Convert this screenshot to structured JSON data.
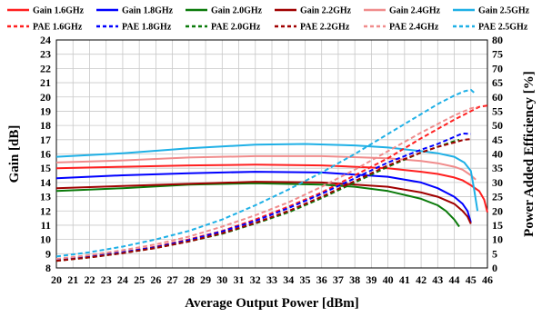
{
  "chart_data": {
    "type": "line",
    "xlabel": "Average Output Power [dBm]",
    "ylabel": "Gain [dB]",
    "y2label": "Power Added Efficiency [%]",
    "xlim": [
      20,
      46
    ],
    "ylim": [
      8,
      24
    ],
    "y2lim": [
      0,
      80
    ],
    "xticks": [
      "20",
      "21",
      "22",
      "23",
      "24",
      "25",
      "26",
      "27",
      "28",
      "29",
      "30",
      "31",
      "32",
      "33",
      "34",
      "35",
      "36",
      "37",
      "38",
      "39",
      "40",
      "41",
      "42",
      "43",
      "44",
      "45",
      "46"
    ],
    "yticks": [
      "8",
      "9",
      "10",
      "11",
      "12",
      "13",
      "14",
      "15",
      "16",
      "17",
      "18",
      "19",
      "20",
      "21",
      "22",
      "23",
      "24"
    ],
    "y2ticks": [
      "0",
      "5",
      "10",
      "15",
      "20",
      "25",
      "30",
      "35",
      "40",
      "45",
      "50",
      "55",
      "60",
      "65",
      "70",
      "75",
      "80"
    ],
    "grid": true,
    "legend_position": "top",
    "series": [
      {
        "name": "Gain 1.6GHz",
        "axis": "left",
        "style": "solid",
        "color": "#ff1f1f",
        "x": [
          20,
          24,
          28,
          32,
          36,
          40,
          42,
          43,
          44,
          44.5,
          45,
          45.5,
          45.8,
          46
        ],
        "y": [
          15.0,
          15.1,
          15.2,
          15.25,
          15.2,
          15.0,
          14.75,
          14.6,
          14.35,
          14.15,
          13.8,
          13.4,
          12.8,
          11.9
        ]
      },
      {
        "name": "Gain 1.8GHz",
        "axis": "left",
        "style": "solid",
        "color": "#0000ff",
        "x": [
          20,
          24,
          28,
          32,
          36,
          40,
          42,
          43,
          44,
          44.5,
          44.8,
          45.0
        ],
        "y": [
          14.3,
          14.5,
          14.65,
          14.75,
          14.7,
          14.4,
          14.0,
          13.6,
          13.0,
          12.5,
          12.0,
          11.2
        ]
      },
      {
        "name": "Gain 2.0GHz",
        "axis": "left",
        "style": "solid",
        "color": "#0a7a0a",
        "x": [
          20,
          24,
          28,
          32,
          36,
          38,
          40,
          42,
          43,
          43.5,
          44,
          44.3
        ],
        "y": [
          13.4,
          13.6,
          13.85,
          13.95,
          13.85,
          13.7,
          13.4,
          12.85,
          12.4,
          12.0,
          11.4,
          10.9
        ]
      },
      {
        "name": "Gain 2.2GHz",
        "axis": "left",
        "style": "solid",
        "color": "#a00000",
        "x": [
          20,
          24,
          28,
          32,
          36,
          40,
          42,
          43,
          44,
          44.5,
          44.8,
          45.0
        ],
        "y": [
          13.6,
          13.75,
          13.9,
          14.05,
          14.0,
          13.7,
          13.3,
          13.0,
          12.5,
          12.0,
          11.6,
          11.1
        ]
      },
      {
        "name": "Gain 2.4GHz",
        "axis": "left",
        "style": "solid",
        "color": "#f08c8c",
        "x": [
          20,
          24,
          28,
          32,
          36,
          40,
          42,
          43,
          44,
          44.5,
          45,
          45.3
        ],
        "y": [
          15.4,
          15.55,
          15.75,
          15.85,
          15.85,
          15.7,
          15.5,
          15.35,
          15.1,
          14.9,
          14.5,
          14.2
        ]
      },
      {
        "name": "Gain 2.5GHz",
        "axis": "left",
        "style": "solid",
        "color": "#1fb0e6",
        "x": [
          20,
          24,
          28,
          32,
          35,
          38,
          40,
          42,
          43,
          44,
          44.6,
          45.0,
          45.2,
          45.4
        ],
        "y": [
          15.8,
          16.05,
          16.4,
          16.65,
          16.7,
          16.6,
          16.45,
          16.2,
          16.05,
          15.8,
          15.4,
          14.8,
          13.5,
          12.0
        ]
      },
      {
        "name": "PAE 1.6GHz",
        "axis": "right",
        "style": "dashed",
        "color": "#ff1f1f",
        "x": [
          20,
          22,
          24,
          26,
          28,
          30,
          32,
          34,
          36,
          38,
          40,
          42,
          44,
          45,
          45.5,
          46
        ],
        "y": [
          2.8,
          4,
          5.5,
          7.5,
          10,
          13,
          17,
          21.5,
          26.5,
          32.5,
          38.5,
          45.5,
          52,
          55,
          56.5,
          57
        ]
      },
      {
        "name": "PAE 1.8GHz",
        "axis": "right",
        "style": "dashed",
        "color": "#0000ff",
        "x": [
          20,
          22,
          24,
          26,
          28,
          30,
          32,
          34,
          36,
          38,
          40,
          42,
          43,
          44,
          44.5,
          45
        ],
        "y": [
          2.8,
          4,
          5.5,
          7.3,
          9.8,
          12.8,
          16.5,
          21,
          26,
          31.5,
          37,
          41.5,
          43.5,
          46,
          47.2,
          47
        ]
      },
      {
        "name": "PAE 2.0GHz",
        "axis": "right",
        "style": "dashed",
        "color": "#0a7a0a",
        "x": [
          20,
          22,
          24,
          26,
          28,
          30,
          32,
          34,
          36,
          38,
          40,
          42,
          43,
          44,
          44.3
        ],
        "y": [
          2.5,
          3.7,
          5.2,
          7,
          9.3,
          12,
          15.6,
          19.5,
          24.5,
          30,
          35.5,
          40.5,
          42.5,
          44.5,
          45
        ]
      },
      {
        "name": "PAE 2.2GHz",
        "axis": "right",
        "style": "dashed",
        "color": "#a00000",
        "x": [
          20,
          22,
          24,
          26,
          28,
          30,
          32,
          34,
          36,
          38,
          40,
          42,
          43,
          44,
          44.6,
          45
        ],
        "y": [
          2.5,
          3.7,
          5.2,
          7,
          9.3,
          12.2,
          15.8,
          20,
          25,
          30.5,
          36,
          40.5,
          42.5,
          44,
          45,
          45.2
        ]
      },
      {
        "name": "PAE 2.4GHz",
        "axis": "right",
        "style": "dashed",
        "color": "#f08c8c",
        "x": [
          20,
          22,
          24,
          26,
          28,
          30,
          32,
          34,
          36,
          38,
          40,
          42,
          44,
          45,
          45.4
        ],
        "y": [
          3.2,
          4.5,
          6.2,
          8.3,
          11,
          14.5,
          18.5,
          23,
          28.5,
          34.5,
          41,
          47.5,
          53.5,
          56,
          56.5
        ]
      },
      {
        "name": "PAE 2.5GHz",
        "axis": "right",
        "style": "dashed",
        "color": "#1fb0e6",
        "x": [
          20,
          22,
          24,
          26,
          28,
          30,
          32,
          34,
          36,
          38,
          40,
          42,
          43,
          44,
          44.6,
          45.0,
          45.3
        ],
        "y": [
          4,
          5.5,
          7.5,
          10,
          13,
          17,
          22,
          27.5,
          33.5,
          40,
          47,
          54,
          57.5,
          60.5,
          62,
          62.5,
          61
        ]
      }
    ]
  }
}
